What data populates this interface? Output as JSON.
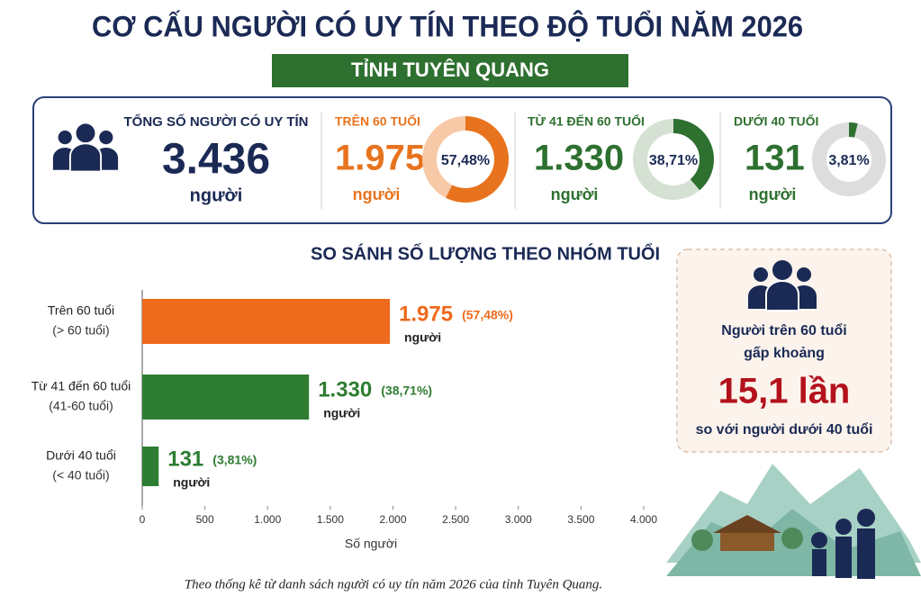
{
  "header": {
    "title": "CƠ CẤU NGƯỜI CÓ UY TÍN THEO ĐỘ TUỔI NĂM 2026",
    "subtitle": "TỈNH TUYÊN QUANG"
  },
  "summary": {
    "label": "TỔNG SỐ NGƯỜI CÓ UY TÍN",
    "value": "3.436",
    "unit": "người"
  },
  "groups": [
    {
      "label": "TRÊN 60 TUỔI",
      "value": "1.975",
      "unit": "người",
      "percent": 57.48,
      "percent_label": "57,48%",
      "color": "#e8731e",
      "track_color": "#f7c9a6"
    },
    {
      "label": "TỪ 41 ĐẾN 60 TUỔI",
      "value": "1.330",
      "unit": "người",
      "percent": 38.71,
      "percent_label": "38,71%",
      "color": "#2e7030",
      "track_color": "#d5e1d3"
    },
    {
      "label": "DƯỚI 40 TUỔI",
      "value": "131",
      "unit": "người",
      "percent": 3.81,
      "percent_label": "3,81%",
      "color": "#2e7030",
      "track_color": "#dddddd"
    }
  ],
  "chart_data": {
    "type": "bar",
    "orientation": "horizontal",
    "title": "SO SÁNH SỐ LƯỢNG THEO NHÓM TUỔI",
    "categories": [
      "Trên 60 tuổi",
      "Từ 41 đến 60 tuổi",
      "Dưới 40 tuổi"
    ],
    "category_notes": [
      "(> 60 tuổi)",
      "(41-60 tuổi)",
      "(< 40 tuổi)"
    ],
    "values": [
      1975,
      1330,
      131
    ],
    "value_labels": [
      "1.975",
      "1.330",
      "131"
    ],
    "percent_labels": [
      "(57,48%)",
      "(38,71%)",
      "(3,81%)"
    ],
    "value_unit": "người",
    "colors": [
      "#ee6a1c",
      "#2e7d32",
      "#2e7d32"
    ],
    "x_label": "Số người",
    "xlim": [
      0,
      4000
    ],
    "xticks": [
      0,
      500,
      {
        "value": 1000,
        "label": "1.000"
      },
      {
        "value": 1500,
        "label": "1.500"
      },
      {
        "value": 2000,
        "label": "2.000"
      },
      {
        "value": 2500,
        "label": "2.500"
      },
      {
        "value": 3000,
        "label": "3.000"
      },
      {
        "value": 3500,
        "label": "3.500"
      },
      {
        "value": 4000,
        "label": "4.000"
      }
    ]
  },
  "callout": {
    "line1": "Người trên 60 tuổi",
    "line2": "gấp khoảng",
    "ratio": "15,1 lần",
    "line3": "so với người dưới 40 tuổi"
  },
  "footnote": "Theo thống kê từ danh sách người có uy tín năm 2026 của tỉnh Tuyên Quang."
}
